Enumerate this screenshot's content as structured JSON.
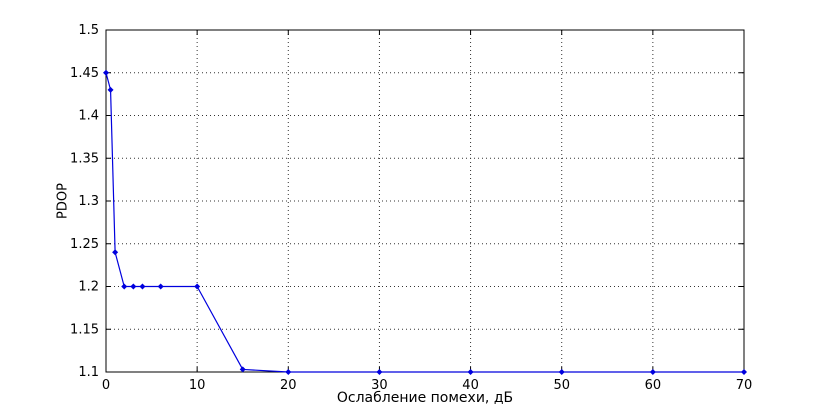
{
  "figure": {
    "background": "#ffffff",
    "axis_color": "#000000",
    "grid_color": "#333333"
  },
  "chart_data": {
    "type": "line",
    "title": "",
    "xlabel": "Ослабление помехи, дБ",
    "ylabel": "PDOP",
    "xlim": [
      0,
      70
    ],
    "ylim": [
      1.1,
      1.5
    ],
    "xticks": [
      0,
      10,
      20,
      30,
      40,
      50,
      60,
      70
    ],
    "yticks": [
      1.1,
      1.15,
      1.2,
      1.25,
      1.3,
      1.35,
      1.4,
      1.45,
      1.5
    ],
    "grid": true,
    "legend_position": "none",
    "series": [
      {
        "name": "PDOP",
        "color": "#0000DE",
        "marker": "diamond",
        "x": [
          0,
          0.5,
          1,
          2,
          3,
          4,
          6,
          10,
          15,
          20,
          30,
          40,
          50,
          60,
          70
        ],
        "y": [
          1.45,
          1.43,
          1.24,
          1.2,
          1.2,
          1.2,
          1.2,
          1.2,
          1.103,
          1.1,
          1.1,
          1.1,
          1.1,
          1.1,
          1.1
        ]
      }
    ]
  }
}
